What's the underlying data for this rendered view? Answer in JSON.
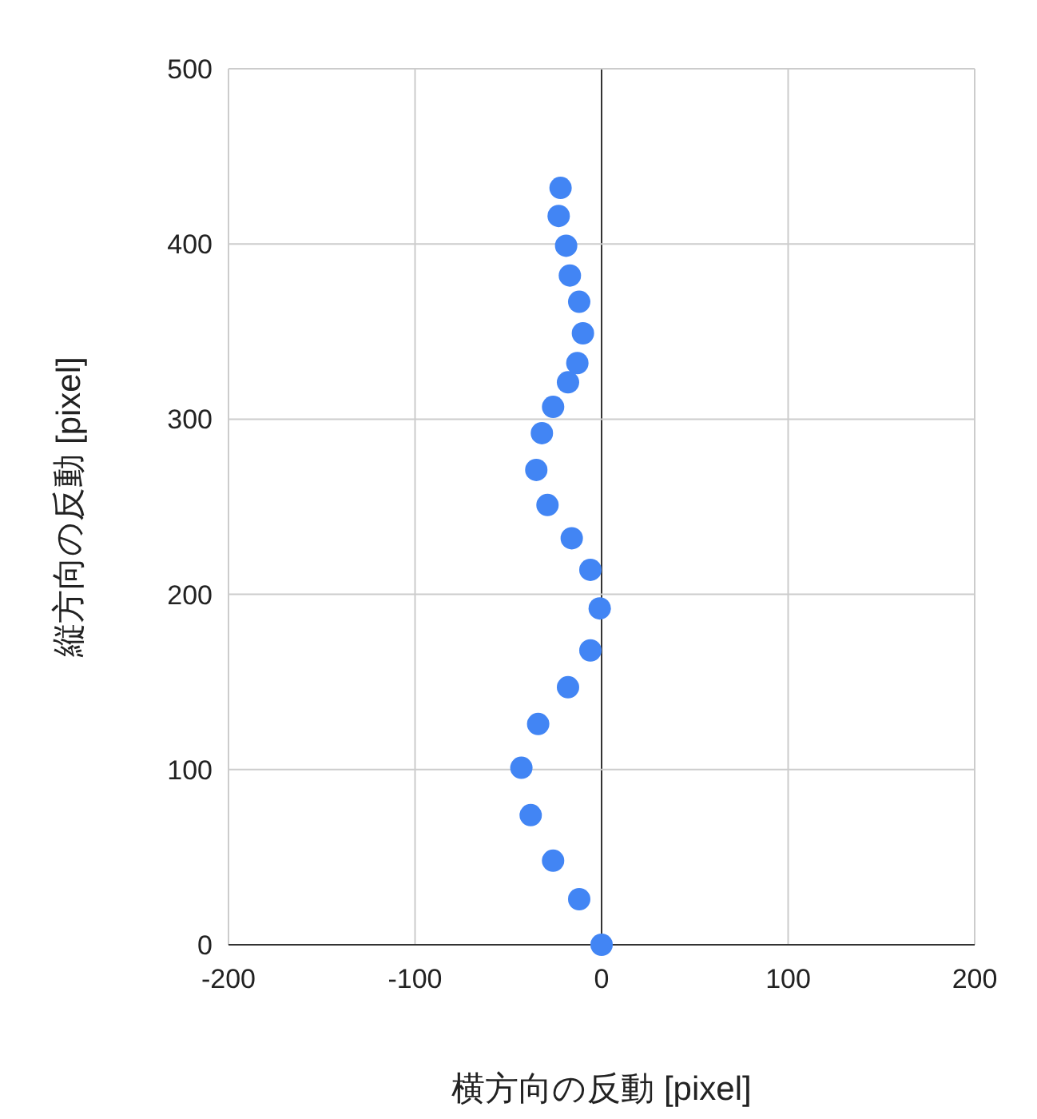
{
  "chart_data": {
    "type": "scatter",
    "xlabel": "横方向の反動 [pixel]",
    "ylabel": "縦方向の反動 [pixel]",
    "xlim": [
      -200,
      200
    ],
    "ylim": [
      0,
      500
    ],
    "xticks": [
      -200,
      -100,
      0,
      100,
      200
    ],
    "yticks": [
      0,
      100,
      200,
      300,
      400,
      500
    ],
    "grid": true,
    "marker": "circle",
    "series": [
      {
        "color": "#4285f4",
        "x": [
          -22,
          -23,
          -19,
          -17,
          -12,
          -10,
          -13,
          -18,
          -26,
          -32,
          -35,
          -29,
          -16,
          -6,
          -1,
          -6,
          -18,
          -34,
          -43,
          -38,
          -26,
          -12,
          0
        ],
        "values": [
          432,
          416,
          399,
          382,
          367,
          349,
          332,
          321,
          307,
          292,
          271,
          251,
          232,
          214,
          192,
          168,
          147,
          126,
          101,
          74,
          48,
          26,
          0
        ]
      }
    ]
  }
}
